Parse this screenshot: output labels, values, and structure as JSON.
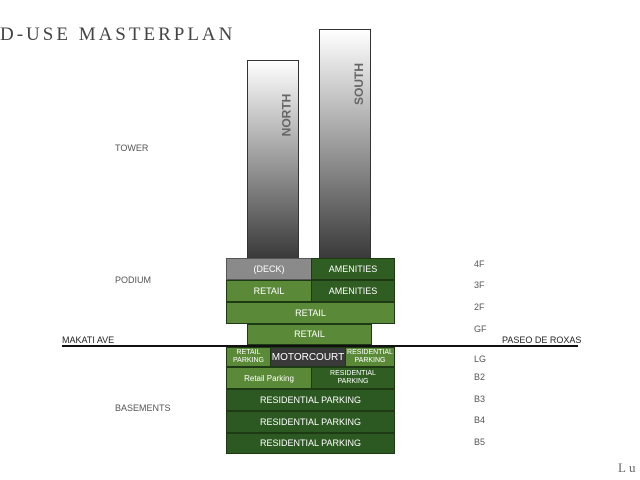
{
  "header": {
    "title": "D-USE MASTERPLAN",
    "corner_mark": "Lu"
  },
  "zones": [
    "TOWER",
    "PODIUM",
    "BASEMENTS"
  ],
  "towers": [
    "NORTH",
    "SOUTH"
  ],
  "streets": [
    "MAKATI AVE",
    "PASEO DE ROXAS"
  ],
  "floors": [
    {
      "label": "4F",
      "blocks": [
        "(DECK)",
        "AMENITIES"
      ]
    },
    {
      "label": "3F",
      "blocks": [
        "RETAIL",
        "AMENITIES"
      ]
    },
    {
      "label": "2F",
      "blocks": [
        "RETAIL"
      ]
    },
    {
      "label": "GF",
      "blocks": [
        "RETAIL"
      ]
    },
    {
      "label": "LG",
      "blocks": [
        "RETAIL PARKING",
        "MOTORCOURT",
        "RESIDENTIAL PARKING"
      ]
    },
    {
      "label": "B2",
      "blocks": [
        "Retail Parking",
        "RESIDENTIAL PARKING"
      ]
    },
    {
      "label": "B3",
      "blocks": [
        "RESIDENTIAL PARKING"
      ]
    },
    {
      "label": "B4",
      "blocks": [
        "RESIDENTIAL PARKING"
      ]
    },
    {
      "label": "B5",
      "blocks": [
        "RESIDENTIAL PARKING"
      ]
    }
  ]
}
